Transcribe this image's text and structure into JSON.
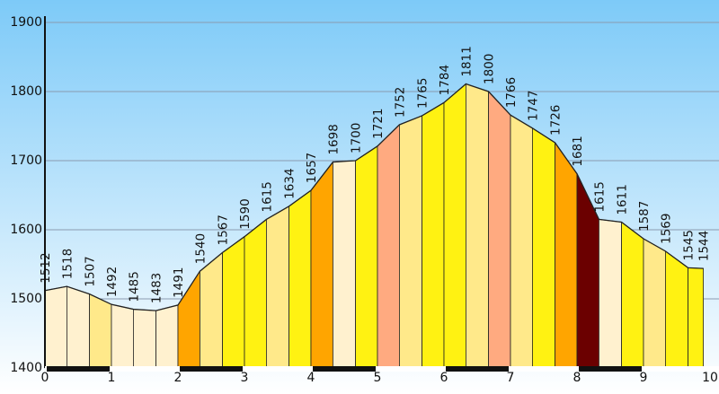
{
  "chart_data": {
    "type": "area",
    "title": "",
    "xlabel": "",
    "ylabel": "",
    "xlim": [
      0,
      10
    ],
    "ylim": [
      1400,
      1900
    ],
    "y_ticks": [
      1400,
      1500,
      1600,
      1700,
      1800,
      1900
    ],
    "x_ticks": [
      0,
      1,
      2,
      3,
      4,
      5,
      6,
      7,
      8,
      9,
      10
    ],
    "x_tick_labels": [
      "0",
      "1",
      "2",
      "3",
      "4",
      "5",
      "6",
      "7",
      "8",
      "9",
      "10"
    ],
    "grid": true,
    "colors": {
      "background_top": "#7dcaf8",
      "background_bottom": "#ffffff",
      "grid": "#8a9bb0",
      "outline": "#222222",
      "gradient_scale": [
        "#fff1cf",
        "#ffe98a",
        "#fff212",
        "#ffa500",
        "#ffaa80",
        "#6b0000"
      ]
    },
    "points": [
      {
        "x": 0.0,
        "y": 1512,
        "color": "#fff1cf"
      },
      {
        "x": 0.33,
        "y": 1518,
        "color": "#fff1cf"
      },
      {
        "x": 0.67,
        "y": 1507,
        "color": "#ffe98a"
      },
      {
        "x": 1.0,
        "y": 1492,
        "color": "#fff1cf"
      },
      {
        "x": 1.33,
        "y": 1485,
        "color": "#fff1cf"
      },
      {
        "x": 1.67,
        "y": 1483,
        "color": "#fff1cf"
      },
      {
        "x": 2.0,
        "y": 1491,
        "color": "#ffa500"
      },
      {
        "x": 2.33,
        "y": 1540,
        "color": "#ffe98a"
      },
      {
        "x": 2.67,
        "y": 1567,
        "color": "#fff212"
      },
      {
        "x": 3.0,
        "y": 1590,
        "color": "#fff212"
      },
      {
        "x": 3.33,
        "y": 1615,
        "color": "#ffe98a"
      },
      {
        "x": 3.67,
        "y": 1634,
        "color": "#fff212"
      },
      {
        "x": 4.0,
        "y": 1657,
        "color": "#ffa500"
      },
      {
        "x": 4.33,
        "y": 1698,
        "color": "#fff1cf"
      },
      {
        "x": 4.67,
        "y": 1700,
        "color": "#fff212"
      },
      {
        "x": 5.0,
        "y": 1721,
        "color": "#ffaa80"
      },
      {
        "x": 5.33,
        "y": 1752,
        "color": "#ffe98a"
      },
      {
        "x": 5.67,
        "y": 1765,
        "color": "#fff212"
      },
      {
        "x": 6.0,
        "y": 1784,
        "color": "#fff212"
      },
      {
        "x": 6.33,
        "y": 1811,
        "color": "#ffe98a"
      },
      {
        "x": 6.67,
        "y": 1800,
        "color": "#ffaa80"
      },
      {
        "x": 7.0,
        "y": 1766,
        "color": "#ffe98a"
      },
      {
        "x": 7.33,
        "y": 1747,
        "color": "#fff212"
      },
      {
        "x": 7.67,
        "y": 1726,
        "color": "#ffa500"
      },
      {
        "x": 8.0,
        "y": 1681,
        "color": "#6b0000"
      },
      {
        "x": 8.33,
        "y": 1615,
        "color": "#fff1cf"
      },
      {
        "x": 8.67,
        "y": 1611,
        "color": "#fff212"
      },
      {
        "x": 9.0,
        "y": 1587,
        "color": "#ffe98a"
      },
      {
        "x": 9.33,
        "y": 1569,
        "color": "#fff212"
      },
      {
        "x": 9.67,
        "y": 1545,
        "color": "#fff212"
      },
      {
        "x": 9.9,
        "y": 1544,
        "color": null
      }
    ],
    "distance_bar": {
      "dark_segments": [
        [
          0,
          1
        ],
        [
          2,
          3
        ],
        [
          4,
          5
        ],
        [
          6,
          7
        ],
        [
          8,
          9
        ]
      ]
    }
  }
}
